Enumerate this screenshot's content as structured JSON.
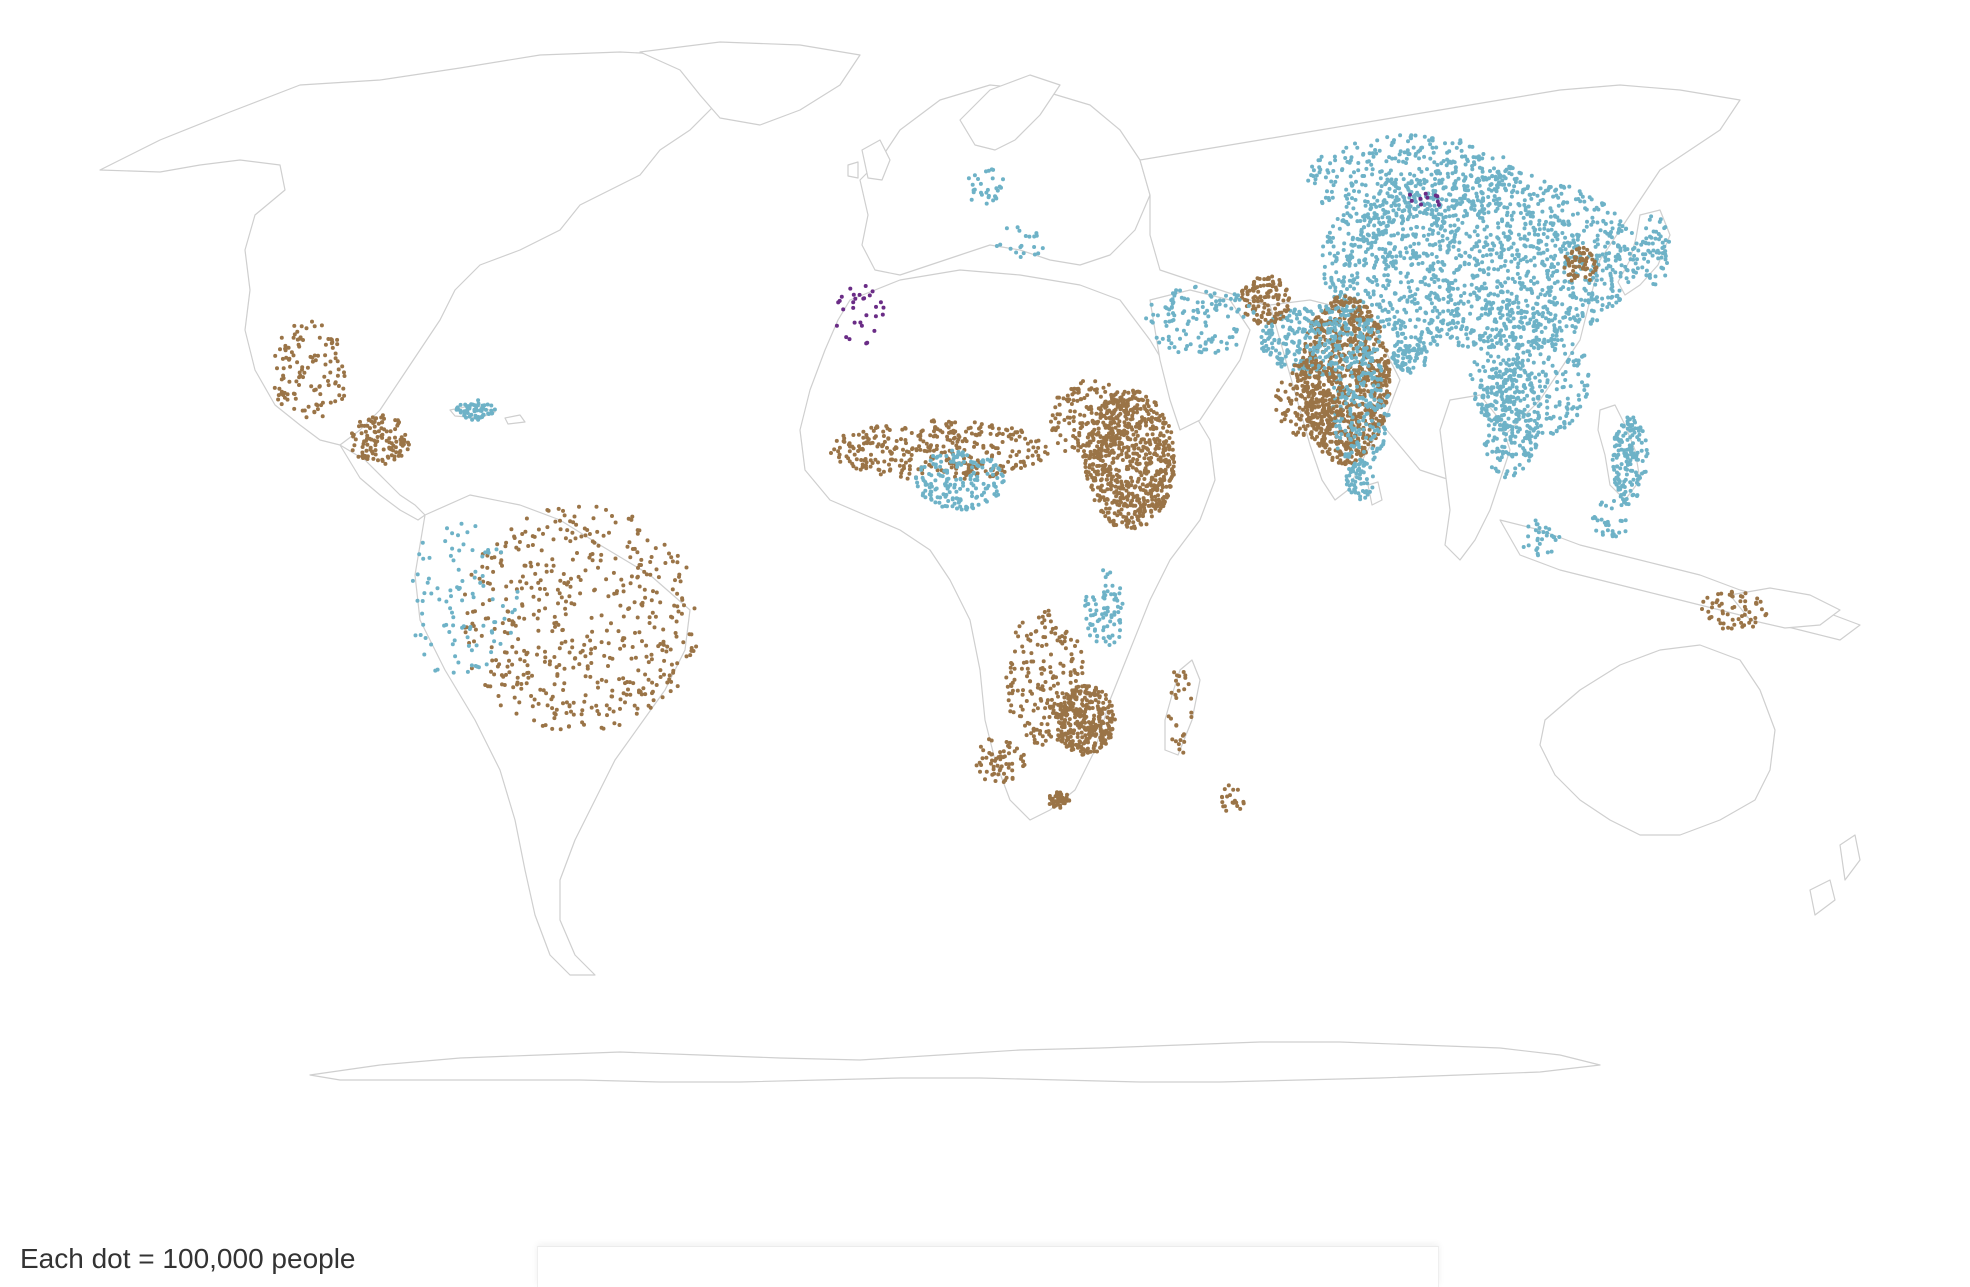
{
  "legend": {
    "caption": "Each dot = 100,000 people",
    "people_per_dot": 100000
  },
  "map": {
    "projection": "natural-earth-like world",
    "background": "#ffffff",
    "land_fill": "#ffffff",
    "border_color": "#cfcfcf",
    "dot_categories": [
      {
        "key": "brown",
        "color": "#9a7447"
      },
      {
        "key": "blue",
        "color": "#6eb2c7"
      },
      {
        "key": "purple",
        "color": "#6a2c86"
      }
    ]
  }
}
